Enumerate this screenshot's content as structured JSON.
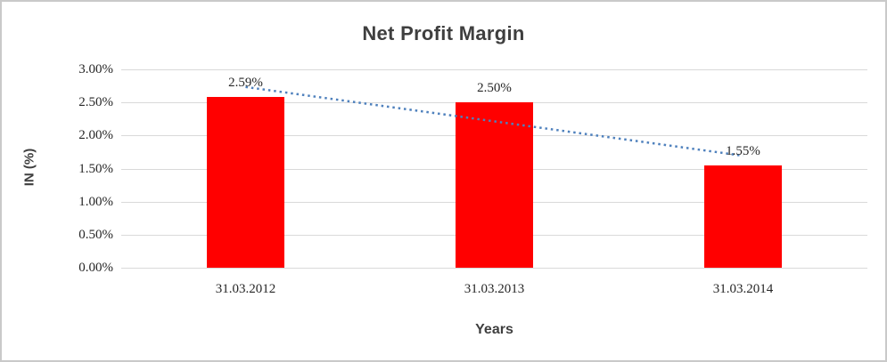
{
  "chart_data": {
    "type": "bar",
    "title": "Net Profit Margin",
    "xlabel": "Years",
    "ylabel": "IN (%)",
    "categories": [
      "31.03.2012",
      "31.03.2013",
      "31.03.2014"
    ],
    "values": [
      2.59,
      2.5,
      1.55
    ],
    "data_labels": [
      "2.59%",
      "2.50%",
      "1.55%"
    ],
    "y_ticks": [
      "0.00%",
      "0.50%",
      "1.00%",
      "1.50%",
      "2.00%",
      "2.50%",
      "3.00%"
    ],
    "y_tick_step": 0.5,
    "ylim": [
      0,
      3.0
    ],
    "grid": true,
    "legend": false,
    "colors": {
      "bar": "#ff0000",
      "trendline": "#4f81bd",
      "gridline": "#d9d9d9",
      "title_text": "#3f3f3f",
      "tick_text": "#262626",
      "frame_border": "#c9c9c9"
    },
    "trendline": {
      "type": "linear",
      "style": "dotted"
    }
  }
}
